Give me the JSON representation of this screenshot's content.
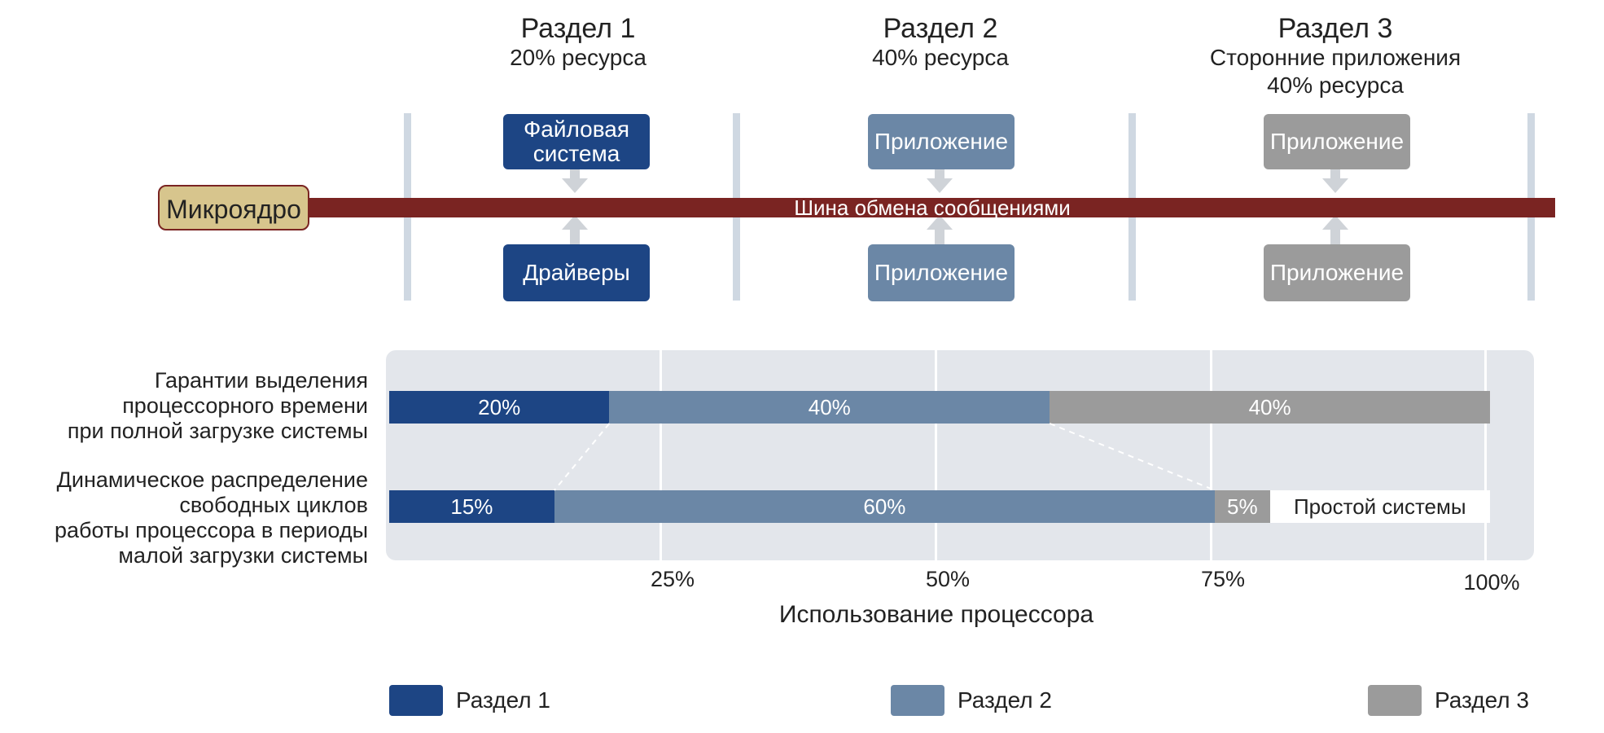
{
  "colors": {
    "section1": "#1d4584",
    "section2": "#6b87a6",
    "section3": "#9b9b9b",
    "bus": "#7a2422",
    "kernel": "#d7c58d",
    "panel": "#e3e6eb",
    "divider": "#cfd8e2"
  },
  "partitions": [
    {
      "title": "Раздел 1",
      "subtitle": "",
      "resource": "20% ресурса",
      "top_box": "Файловая система",
      "bottom_box": "Драйверы"
    },
    {
      "title": "Раздел 2",
      "subtitle": "",
      "resource": "40% ресурса",
      "top_box": "Приложение",
      "bottom_box": "Приложение"
    },
    {
      "title": "Раздел 3",
      "subtitle": "Сторонние приложения",
      "resource": "40% ресурса",
      "top_box": "Приложение",
      "bottom_box": "Приложение"
    }
  ],
  "kernel_label": "Микроядро",
  "bus_label": "Шина обмена сообщениями",
  "chart_data": {
    "type": "bar",
    "orientation": "horizontal-stacked",
    "xlabel": "Использование процессора",
    "xlim": [
      0,
      100
    ],
    "ticks": [
      "25%",
      "50%",
      "75%",
      "100%"
    ],
    "rows": [
      {
        "label_lines": [
          "Гарантии выделения",
          "процессорного времени",
          "при полной загрузке системы"
        ],
        "segments": [
          {
            "series": "Раздел 1",
            "value": 20,
            "label": "20%"
          },
          {
            "series": "Раздел 2",
            "value": 40,
            "label": "40%"
          },
          {
            "series": "Раздел 3",
            "value": 40,
            "label": "40%"
          }
        ]
      },
      {
        "label_lines": [
          "Динамическое  распределение",
          "свободных циклов",
          "работы процессора в периоды",
          "малой загрузки системы"
        ],
        "segments": [
          {
            "series": "Раздел 1",
            "value": 15,
            "label": "15%"
          },
          {
            "series": "Раздел 2",
            "value": 60,
            "label": "60%"
          },
          {
            "series": "Раздел 3",
            "value": 5,
            "label": "5%"
          }
        ],
        "idle_label": "Простой системы"
      }
    ],
    "legend": [
      "Раздел 1",
      "Раздел 2",
      "Раздел 3"
    ]
  }
}
